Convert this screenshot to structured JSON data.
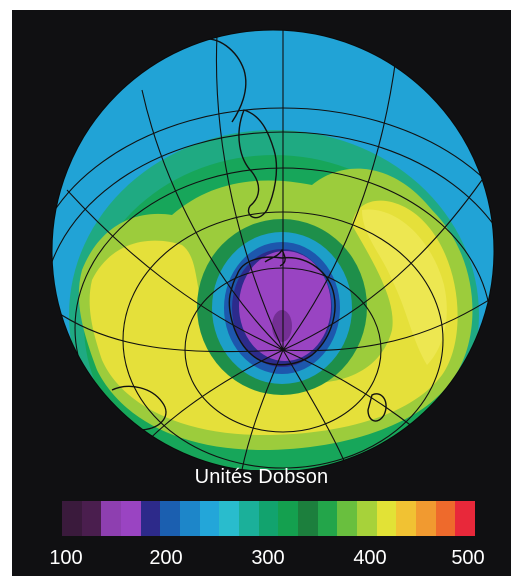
{
  "legend": {
    "title": "Unités Dobson",
    "unit": "Dobson",
    "range": [
      100,
      500
    ],
    "ticks": [
      "100",
      "200",
      "300",
      "400",
      "500"
    ],
    "colors": [
      "#3a1a3c",
      "#4a1e4e",
      "#8e3fb0",
      "#9a44c2",
      "#2d2a8a",
      "#1b5fb0",
      "#1d86c9",
      "#23a6d9",
      "#29bccd",
      "#1bb09a",
      "#12a36e",
      "#14a04f",
      "#1c7f3d",
      "#23a54a",
      "#69bf3e",
      "#a7d23a",
      "#e2e236",
      "#f1c233",
      "#f19a30",
      "#ee6a2c",
      "#e8283a"
    ]
  },
  "map": {
    "projection": "orthographic",
    "view": "South Pole",
    "ozone_hole_min_du": 150,
    "collar_max_du": 390,
    "ozone_zones_du": [
      {
        "zone": "polar-hole",
        "value": 160
      },
      {
        "zone": "hole-edge",
        "value": 220
      },
      {
        "zone": "inner-ring",
        "value": 270
      },
      {
        "zone": "green-band",
        "value": 300
      },
      {
        "zone": "yellow-collar",
        "value": 380
      },
      {
        "zone": "mid-latitudes",
        "value": 290
      },
      {
        "zone": "tropics",
        "value": 250
      }
    ]
  }
}
